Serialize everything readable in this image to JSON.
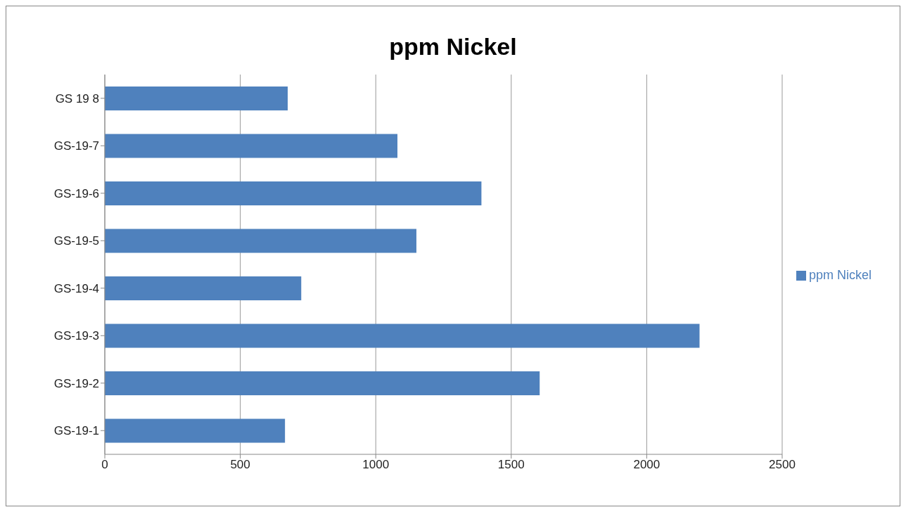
{
  "chart_data": {
    "type": "bar",
    "title": "ppm Nickel",
    "orientation": "horizontal",
    "categories": [
      "GS 19 8",
      "GS-19-7",
      "GS-19-6",
      "GS-19-5",
      "GS-19-4",
      "GS-19-3",
      "GS-19-2",
      "GS-19-1"
    ],
    "series": [
      {
        "name": "ppm Nickel",
        "color": "#4f81bd",
        "values": [
          675,
          1080,
          1390,
          1150,
          725,
          2195,
          1605,
          665
        ]
      }
    ],
    "xlim": [
      0,
      2500
    ],
    "xticks": [
      0,
      500,
      1000,
      1500,
      2000,
      2500
    ],
    "grid": "x",
    "legend": "right"
  }
}
